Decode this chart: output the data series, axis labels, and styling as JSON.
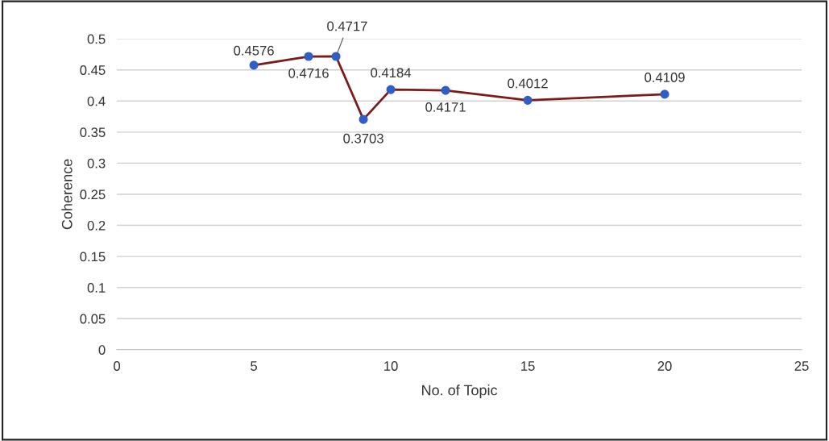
{
  "chart_data": {
    "type": "line",
    "xlabel": "No. of Topic",
    "ylabel": "Coherence",
    "x": [
      5,
      7,
      8,
      9,
      10,
      12,
      15,
      20
    ],
    "series": [
      {
        "color": "#7b1c1c",
        "values": [
          0.4576,
          0.4716,
          0.4717,
          0.3703,
          0.4184,
          0.4171,
          0.4012,
          0.4109
        ]
      }
    ],
    "xlim": [
      0,
      25
    ],
    "xticks": [
      0,
      5,
      10,
      15,
      20,
      25
    ],
    "ylim": [
      0,
      0.5
    ],
    "yticks": [
      {
        "value": 0,
        "label": "0"
      },
      0.05,
      0.1,
      0.15,
      0.2,
      0.25,
      0.3,
      0.35,
      0.4,
      0.45,
      0.5
    ],
    "grid": "y",
    "marker": "circle",
    "line_style": "solid",
    "data_labels": true
  }
}
